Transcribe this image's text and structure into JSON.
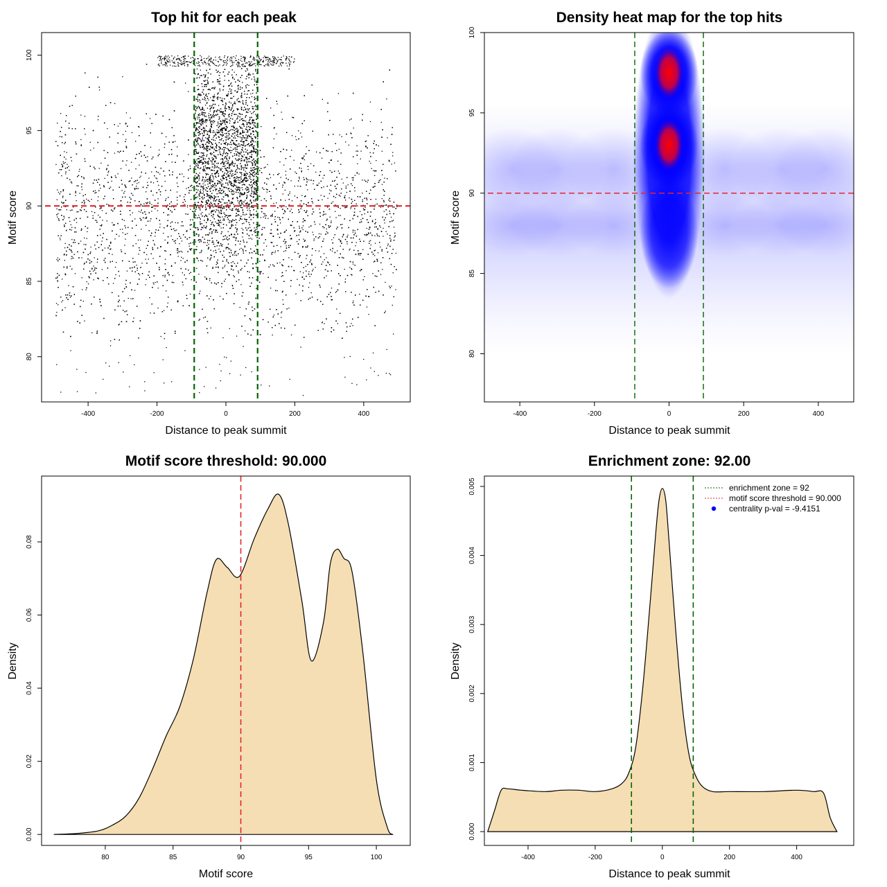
{
  "chart_data": [
    {
      "id": "scatter",
      "type": "scatter",
      "title": "Top hit for each peak",
      "xlabel": "Distance to peak summit",
      "ylabel": "Motif score",
      "xlim": [
        -535,
        535
      ],
      "ylim": [
        77,
        101.5
      ],
      "xticks": [
        -400,
        -200,
        0,
        200,
        400
      ],
      "yticks": [
        80,
        85,
        90,
        95,
        100
      ],
      "lines": [
        {
          "orientation": "vertical",
          "value": -92,
          "color": "#006400",
          "style": "dashed"
        },
        {
          "orientation": "vertical",
          "value": 92,
          "color": "#006400",
          "style": "dashed"
        },
        {
          "orientation": "horizontal",
          "value": 90,
          "color": "#e3262a",
          "style": "dashed"
        }
      ],
      "points_summary": {
        "x_range": [
          -495,
          495
        ],
        "y_range": [
          77.3,
          100
        ],
        "dense_center_x": [
          -92,
          92
        ],
        "dense_center_y": [
          84,
          100
        ],
        "uniform_background_y": [
          81,
          99.5
        ]
      }
    },
    {
      "id": "heatmap",
      "type": "heatmap",
      "title": "Density heat map for the top hits",
      "xlabel": "Distance to peak summit",
      "ylabel": "Motif score",
      "xlim": [
        -495,
        495
      ],
      "ylim": [
        77,
        100
      ],
      "xticks": [
        -400,
        -200,
        0,
        200,
        400
      ],
      "yticks": [
        80,
        85,
        90,
        95,
        100
      ],
      "colors": [
        "#ffffff",
        "#0000ff",
        "#ff0000"
      ],
      "lines": [
        {
          "orientation": "vertical",
          "value": -92,
          "color": "#006400",
          "style": "dashed"
        },
        {
          "orientation": "vertical",
          "value": 92,
          "color": "#006400",
          "style": "dashed"
        },
        {
          "orientation": "horizontal",
          "value": 90,
          "color": "#e3262a",
          "style": "dashed"
        }
      ],
      "hotspots": [
        {
          "x": 0,
          "y": 97.5,
          "level": "high"
        },
        {
          "x": 0,
          "y": 93,
          "level": "high"
        },
        {
          "x": 0,
          "y": 88,
          "level": "medium"
        }
      ]
    },
    {
      "id": "score_density",
      "type": "area",
      "title": "Motif score threshold: 90.000",
      "xlabel": "Motif score",
      "ylabel": "Density",
      "xlim": [
        75.3,
        102.5
      ],
      "ylim": [
        -0.003,
        0.098
      ],
      "xticks": [
        80,
        85,
        90,
        95,
        100
      ],
      "yticks": [
        0.0,
        0.02,
        0.04,
        0.06,
        0.08
      ],
      "ytick_labels": [
        "0.00",
        "0.02",
        "0.04",
        "0.06",
        "0.08"
      ],
      "fill": "#f5deb3",
      "lines": [
        {
          "orientation": "vertical",
          "value": 90,
          "color": "#e3262a",
          "style": "dashed"
        }
      ],
      "x": [
        76.2,
        78,
        79.5,
        80.5,
        81.5,
        82.5,
        83.5,
        84.5,
        85.5,
        86.5,
        87.5,
        88.2,
        89,
        89.9,
        91,
        92,
        92.8,
        93.5,
        94.5,
        95.2,
        96.1,
        96.6,
        97.1,
        97.6,
        98.2,
        99,
        100,
        100.8,
        101.2
      ],
      "values": [
        0.0,
        0.0003,
        0.001,
        0.0025,
        0.005,
        0.01,
        0.018,
        0.027,
        0.035,
        0.048,
        0.066,
        0.0752,
        0.073,
        0.0706,
        0.081,
        0.089,
        0.093,
        0.085,
        0.064,
        0.0475,
        0.058,
        0.074,
        0.078,
        0.0755,
        0.072,
        0.05,
        0.015,
        0.002,
        0.0
      ]
    },
    {
      "id": "distance_density",
      "type": "area",
      "title": "Enrichment zone: 92.00",
      "xlabel": "Distance to peak summit",
      "ylabel": "Density",
      "xlim": [
        -530,
        570
      ],
      "ylim": [
        -0.0002,
        0.00515
      ],
      "xticks": [
        -400,
        -200,
        0,
        200,
        400
      ],
      "yticks": [
        0.0,
        0.001,
        0.002,
        0.003,
        0.004,
        0.005
      ],
      "ytick_labels": [
        "0.000",
        "0.001",
        "0.002",
        "0.003",
        "0.004",
        "0.005"
      ],
      "fill": "#f5deb3",
      "lines": [
        {
          "orientation": "vertical",
          "value": -92,
          "color": "#006400",
          "style": "dashed"
        },
        {
          "orientation": "vertical",
          "value": 92,
          "color": "#006400",
          "style": "dashed"
        }
      ],
      "x": [
        -520,
        -500,
        -480,
        -460,
        -420,
        -350,
        -300,
        -250,
        -200,
        -150,
        -120,
        -100,
        -80,
        -60,
        -40,
        -20,
        -10,
        0,
        10,
        20,
        40,
        60,
        80,
        100,
        120,
        150,
        200,
        300,
        400,
        450,
        480,
        500,
        520
      ],
      "values": [
        0.0,
        0.0003,
        0.0006,
        0.00062,
        0.0006,
        0.00058,
        0.0006,
        0.0006,
        0.00058,
        0.00062,
        0.0007,
        0.00085,
        0.0012,
        0.002,
        0.0031,
        0.0043,
        0.0048,
        0.00497,
        0.0048,
        0.0042,
        0.0029,
        0.0018,
        0.0011,
        0.0008,
        0.00065,
        0.00058,
        0.00058,
        0.00058,
        0.0006,
        0.00058,
        0.00056,
        0.0002,
        0.0
      ]
    }
  ],
  "legend": {
    "items": [
      {
        "label": "enrichment zone = 92",
        "color": "#006400",
        "kind": "line"
      },
      {
        "label": "motif score threshold = 90.000",
        "color": "#e3262a",
        "kind": "line"
      },
      {
        "label": "centrality p-val = -9.4151",
        "color": "#0000ff",
        "kind": "point"
      }
    ]
  }
}
